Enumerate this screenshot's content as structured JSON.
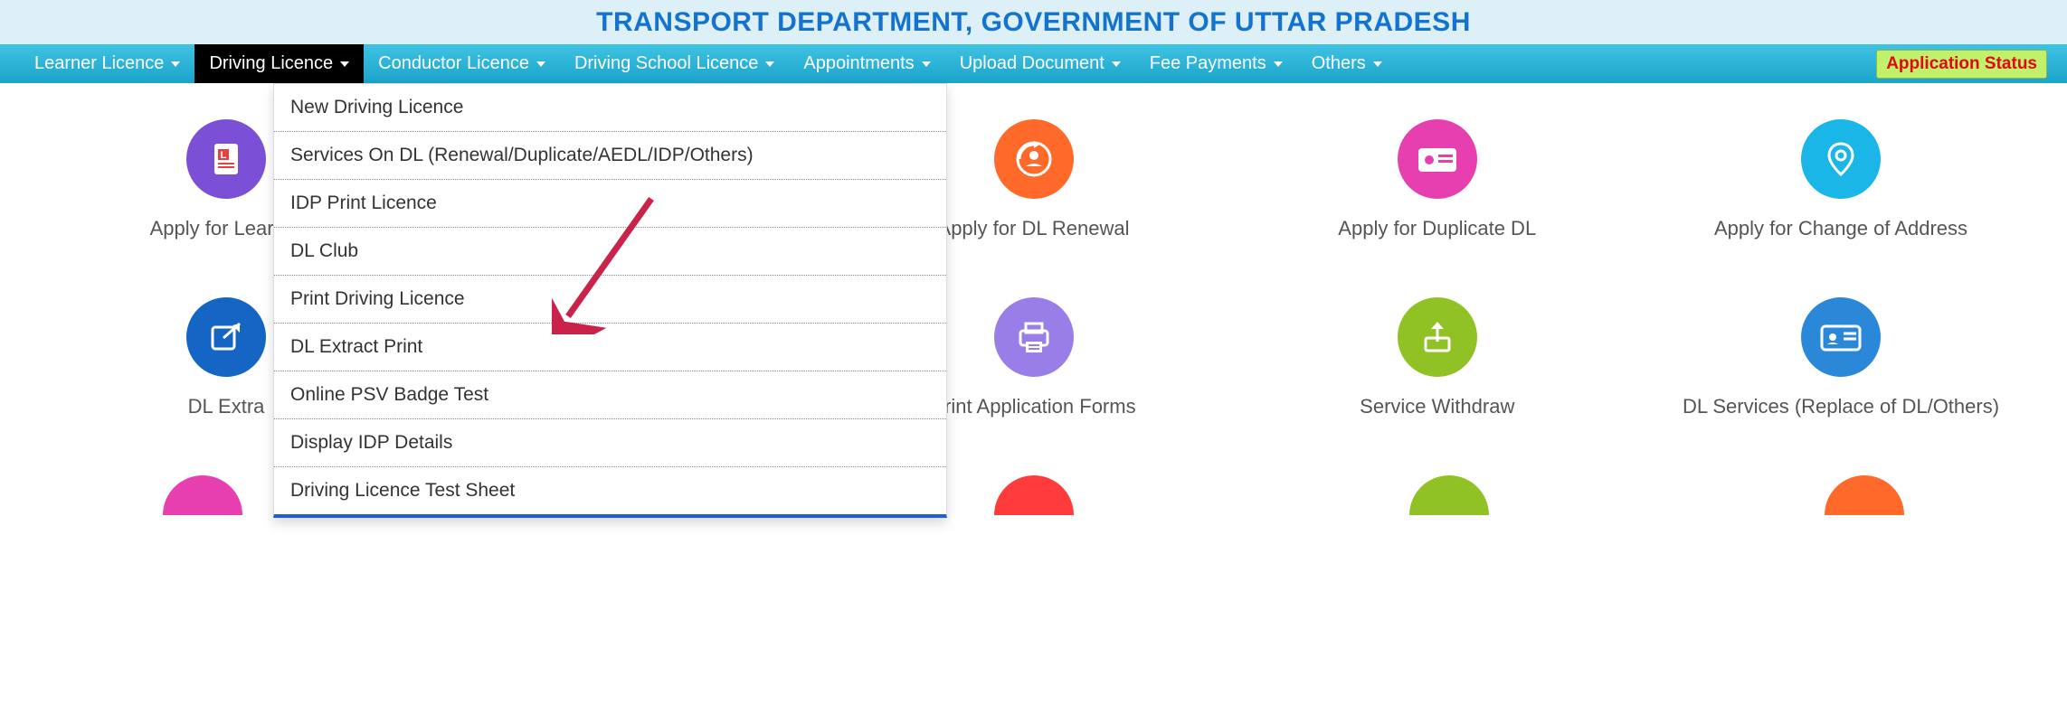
{
  "header": {
    "title": "TRANSPORT DEPARTMENT, GOVERNMENT OF UTTAR PRADESH"
  },
  "nav": {
    "items": [
      {
        "label": "Learner Licence",
        "active": false
      },
      {
        "label": "Driving Licence",
        "active": true
      },
      {
        "label": "Conductor Licence",
        "active": false
      },
      {
        "label": "Driving School Licence",
        "active": false
      },
      {
        "label": "Appointments",
        "active": false
      },
      {
        "label": "Upload Document",
        "active": false
      },
      {
        "label": "Fee Payments",
        "active": false
      },
      {
        "label": "Others",
        "active": false
      }
    ],
    "appStatus": "Application Status"
  },
  "dropdown": {
    "items": [
      "New Driving Licence",
      "Services On DL (Renewal/Duplicate/AEDL/IDP/Others)",
      "IDP Print Licence",
      "DL Club",
      "Print Driving Licence",
      "DL Extract Print",
      "Online PSV Badge Test",
      "Display IDP Details",
      "Driving Licence Test Sheet"
    ]
  },
  "cards": {
    "row1": [
      {
        "label": "Apply for Learner",
        "icon": "learner-doc",
        "color": "#7b4fd6"
      },
      {
        "label": "",
        "icon": "",
        "color": ""
      },
      {
        "label": "Apply for DL Renewal",
        "icon": "id-refresh",
        "color": "#ff6a2b"
      },
      {
        "label": "Apply for Duplicate DL",
        "icon": "dup-card",
        "color": "#e83fb0"
      },
      {
        "label": "Apply for Change of Address",
        "icon": "location-pin",
        "color": "#1bb6e8"
      }
    ],
    "row2": [
      {
        "label": "DL Extra",
        "icon": "share-out",
        "color": "#1566c4"
      },
      {
        "label": "",
        "icon": "",
        "color": ""
      },
      {
        "label": "Print Application Forms",
        "icon": "printer",
        "color": "#9a7ee8"
      },
      {
        "label": "Service Withdraw",
        "icon": "upload-box",
        "color": "#91c225"
      },
      {
        "label": "DL Services (Replace of DL/Others)",
        "icon": "id-card",
        "color": "#2b88d8"
      }
    ]
  },
  "colors": {
    "headerBg": "#def0f7",
    "headerText": "#1373cf",
    "navGradTop": "#3fc3e4",
    "navGradBot": "#1ba3c9",
    "navActive": "#000000",
    "dropdownBorderBottom": "#1e5fd8",
    "appStatusBg": "#c1f06b",
    "appStatusText": "#e30613",
    "arrowColor": "#c9234a"
  },
  "partialRowColors": [
    "#e83fb0",
    "#1566c4",
    "#ff3b3b",
    "#91c225",
    "#ff6a2b"
  ]
}
